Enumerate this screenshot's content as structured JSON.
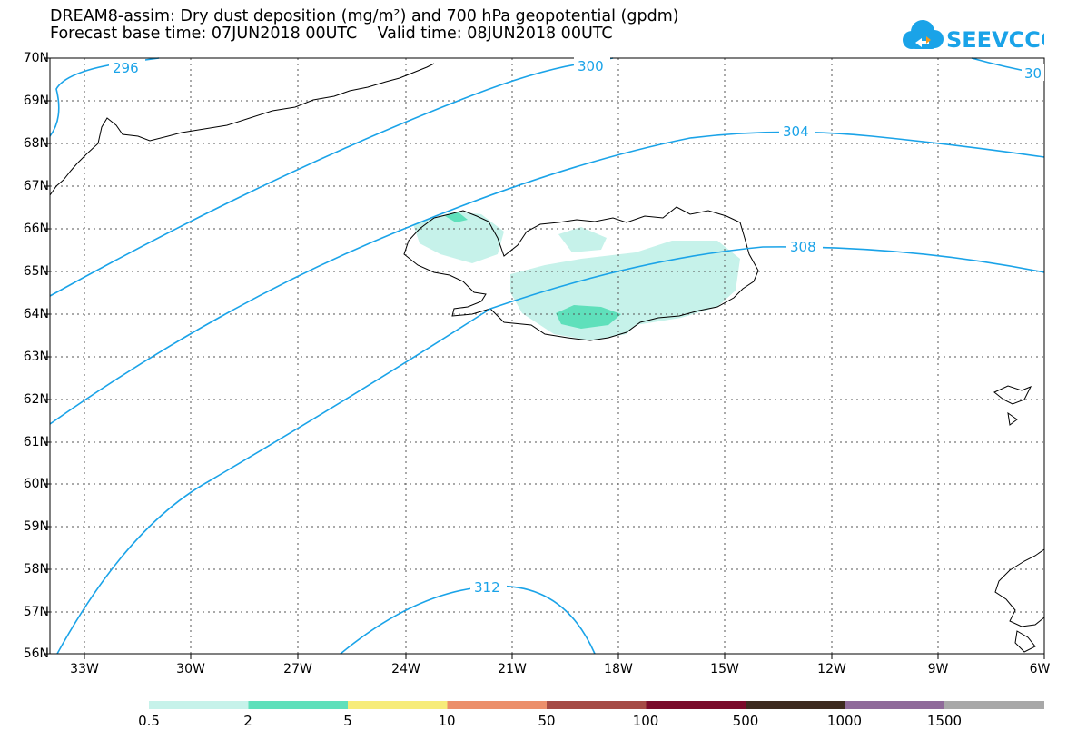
{
  "title_line1": "DREAM8-assim: Dry dust deposition (mg/m²) and 700 hPa geopotential (gpdm)",
  "title_line2": "Forecast base time: 07JUN2018 00UTC    Valid time: 08JUN2018 00UTC",
  "logo_text": "SEEVCCC",
  "lat_labels": [
    "70N",
    "69N",
    "68N",
    "67N",
    "66N",
    "65N",
    "64N",
    "63N",
    "62N",
    "61N",
    "60N",
    "59N",
    "58N",
    "57N",
    "56N"
  ],
  "lon_labels": [
    "33W",
    "30W",
    "27W",
    "24W",
    "21W",
    "18W",
    "15W",
    "12W",
    "9W",
    "6W"
  ],
  "contour_labels": [
    "296",
    "300",
    "30",
    "304",
    "308",
    "312"
  ],
  "colorbar": {
    "labels": [
      "0.5",
      "2",
      "5",
      "10",
      "50",
      "100",
      "500",
      "1000",
      "1500"
    ],
    "colors": [
      "#c6f2ea",
      "#5fe0bb",
      "#f7ec7a",
      "#ec8f6b",
      "#a54a45",
      "#7a0a2a",
      "#3d2a1f",
      "#8f6a9a",
      "#a8a8a8"
    ]
  },
  "colors": {
    "contour": "#1aa3e8",
    "land": "#000000",
    "grid": "#555555"
  }
}
